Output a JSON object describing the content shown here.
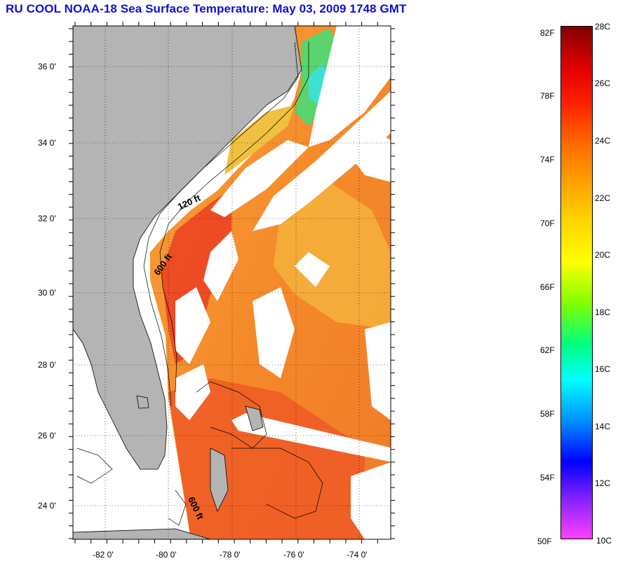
{
  "title": "RU COOL  NOAA-18  Sea Surface Temperature:  May 03, 2009 1748 GMT",
  "map": {
    "lat_labels": [
      "36 0'",
      "34 0'",
      "32 0'",
      "30 0'",
      "28 0'",
      "26 0'",
      "24 0'"
    ],
    "lon_labels": [
      "-82 0'",
      "-80 0'",
      "-78 0'",
      "-76 0'",
      "-74 0'"
    ],
    "contour_labels": [
      "120 ft",
      "600 ft",
      "600 ft"
    ],
    "colors": {
      "land": "#b4b4b4",
      "cloud": "#ffffff",
      "water_orange": "#f58a2a",
      "water_red": "#ef4a24",
      "water_yellow": "#f5b83a",
      "coastal_cool": "#7cd86a",
      "coastal_cyan": "#3fe0d8"
    }
  },
  "colorbar": {
    "fahrenheit_labels": [
      "82F",
      "78F",
      "74F",
      "70F",
      "66F",
      "62F",
      "58F",
      "54F",
      "50F"
    ],
    "celsius_labels": [
      "28C",
      "26C",
      "24C",
      "22C",
      "20C",
      "18C",
      "16C",
      "14C",
      "12C",
      "10C"
    ],
    "range_c": [
      10,
      28
    ],
    "range_f": [
      50,
      82
    ],
    "gradient_stops": [
      "#800000",
      "#e00000",
      "#ff2000",
      "#ff6a00",
      "#ffa500",
      "#ffd500",
      "#ffff00",
      "#80ff00",
      "#00ff80",
      "#00ffff",
      "#0090ff",
      "#0000ff",
      "#8020ff",
      "#ff40ff"
    ]
  }
}
